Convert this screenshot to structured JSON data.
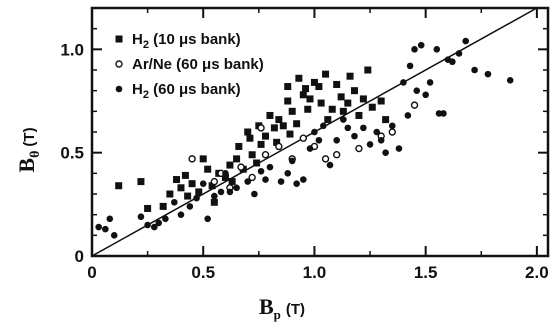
{
  "chart_data": {
    "type": "scatter",
    "title": "",
    "xlabel": {
      "main": "B",
      "sub": "p",
      "unit": "(T)"
    },
    "ylabel": {
      "main": "B",
      "sub": "θ",
      "unit": "(T)"
    },
    "xlim": [
      0,
      2.05
    ],
    "ylim": [
      0,
      1.2
    ],
    "x_ticks": [
      {
        "value": 0,
        "label": "0"
      },
      {
        "value": 0.5,
        "label": "0.5"
      },
      {
        "value": 1.0,
        "label": "1.0"
      },
      {
        "value": 1.5,
        "label": "1.5"
      },
      {
        "value": 2.0,
        "label": "2.0"
      }
    ],
    "y_ticks": [
      {
        "value": 0,
        "label": "0"
      },
      {
        "value": 0.5,
        "label": "0.5"
      },
      {
        "value": 1.0,
        "label": "1.0"
      }
    ],
    "grid": false,
    "legend_position": "top-left",
    "reference_line": {
      "x": [
        0,
        2.0
      ],
      "y": [
        0,
        1.2
      ]
    },
    "series": [
      {
        "name": "H2 (10 μs bank)",
        "legend": {
          "pre": "H",
          "sub": "2",
          "post": " (10 μs bank)"
        },
        "marker": "filled-square",
        "points": [
          [
            0.12,
            0.34
          ],
          [
            0.22,
            0.36
          ],
          [
            0.25,
            0.23
          ],
          [
            0.32,
            0.24
          ],
          [
            0.35,
            0.3
          ],
          [
            0.38,
            0.37
          ],
          [
            0.4,
            0.33
          ],
          [
            0.42,
            0.39
          ],
          [
            0.43,
            0.29
          ],
          [
            0.45,
            0.35
          ],
          [
            0.48,
            0.31
          ],
          [
            0.5,
            0.47
          ],
          [
            0.52,
            0.42
          ],
          [
            0.54,
            0.34
          ],
          [
            0.55,
            0.26
          ],
          [
            0.57,
            0.4
          ],
          [
            0.6,
            0.38
          ],
          [
            0.62,
            0.44
          ],
          [
            0.63,
            0.36
          ],
          [
            0.65,
            0.47
          ],
          [
            0.66,
            0.53
          ],
          [
            0.68,
            0.42
          ],
          [
            0.7,
            0.6
          ],
          [
            0.71,
            0.57
          ],
          [
            0.72,
            0.49
          ],
          [
            0.74,
            0.45
          ],
          [
            0.75,
            0.63
          ],
          [
            0.76,
            0.54
          ],
          [
            0.78,
            0.58
          ],
          [
            0.8,
            0.68
          ],
          [
            0.82,
            0.62
          ],
          [
            0.83,
            0.55
          ],
          [
            0.84,
            0.66
          ],
          [
            0.86,
            0.63
          ],
          [
            0.88,
            0.75
          ],
          [
            0.88,
            0.82
          ],
          [
            0.89,
            0.59
          ],
          [
            0.9,
            0.7
          ],
          [
            0.92,
            0.64
          ],
          [
            0.93,
            0.86
          ],
          [
            0.95,
            0.78
          ],
          [
            0.96,
            0.81
          ],
          [
            0.97,
            0.71
          ],
          [
            0.98,
            0.76
          ],
          [
            1.0,
            0.84
          ],
          [
            1.02,
            0.82
          ],
          [
            1.03,
            0.74
          ],
          [
            1.05,
            0.88
          ],
          [
            1.06,
            0.66
          ],
          [
            1.08,
            0.71
          ],
          [
            1.1,
            0.83
          ],
          [
            1.12,
            0.77
          ],
          [
            1.13,
            0.7
          ],
          [
            1.15,
            0.74
          ],
          [
            1.16,
            0.87
          ],
          [
            1.18,
            0.8
          ],
          [
            1.2,
            0.68
          ],
          [
            1.22,
            0.76
          ],
          [
            1.24,
            0.9
          ],
          [
            1.26,
            0.72
          ],
          [
            1.3,
            0.75
          ],
          [
            1.32,
            0.66
          ]
        ]
      },
      {
        "name": "Ar/Ne (60 μs bank)",
        "legend": {
          "pre": "Ar/Ne (60 μs bank)",
          "sub": "",
          "post": ""
        },
        "marker": "open-circle",
        "points": [
          [
            0.45,
            0.47
          ],
          [
            0.55,
            0.36
          ],
          [
            0.58,
            0.4
          ],
          [
            0.62,
            0.33
          ],
          [
            0.67,
            0.43
          ],
          [
            0.72,
            0.38
          ],
          [
            0.76,
            0.62
          ],
          [
            0.78,
            0.49
          ],
          [
            0.84,
            0.53
          ],
          [
            0.9,
            0.47
          ],
          [
            0.95,
            0.57
          ],
          [
            1.0,
            0.53
          ],
          [
            1.05,
            0.47
          ],
          [
            1.1,
            0.49
          ],
          [
            1.2,
            0.52
          ],
          [
            1.3,
            0.58
          ],
          [
            1.35,
            0.6
          ],
          [
            1.45,
            0.73
          ]
        ]
      },
      {
        "name": "H2 (60 μs bank)",
        "legend": {
          "pre": "H",
          "sub": "2",
          "post": " (60 μs bank)"
        },
        "marker": "filled-circle",
        "points": [
          [
            0.03,
            0.14
          ],
          [
            0.06,
            0.13
          ],
          [
            0.08,
            0.18
          ],
          [
            0.1,
            0.1
          ],
          [
            0.22,
            0.19
          ],
          [
            0.25,
            0.15
          ],
          [
            0.28,
            0.14
          ],
          [
            0.3,
            0.16
          ],
          [
            0.33,
            0.18
          ],
          [
            0.37,
            0.26
          ],
          [
            0.4,
            0.2
          ],
          [
            0.44,
            0.24
          ],
          [
            0.47,
            0.28
          ],
          [
            0.5,
            0.35
          ],
          [
            0.52,
            0.18
          ],
          [
            0.55,
            0.29
          ],
          [
            0.58,
            0.31
          ],
          [
            0.62,
            0.31
          ],
          [
            0.65,
            0.33
          ],
          [
            0.7,
            0.36
          ],
          [
            0.73,
            0.3
          ],
          [
            0.76,
            0.41
          ],
          [
            0.8,
            0.43
          ],
          [
            0.85,
            0.36
          ],
          [
            0.88,
            0.4
          ],
          [
            0.9,
            0.46
          ],
          [
            0.95,
            0.37
          ],
          [
            0.98,
            0.52
          ],
          [
            1.0,
            0.6
          ],
          [
            1.02,
            0.56
          ],
          [
            1.04,
            0.63
          ],
          [
            1.07,
            0.44
          ],
          [
            1.1,
            0.56
          ],
          [
            1.13,
            0.66
          ],
          [
            1.15,
            0.62
          ],
          [
            1.18,
            0.58
          ],
          [
            1.22,
            0.62
          ],
          [
            1.25,
            0.54
          ],
          [
            1.28,
            0.6
          ],
          [
            1.3,
            0.56
          ],
          [
            1.32,
            0.5
          ],
          [
            1.35,
            0.63
          ],
          [
            1.38,
            0.52
          ],
          [
            1.4,
            0.84
          ],
          [
            1.42,
            0.68
          ],
          [
            1.43,
            0.92
          ],
          [
            1.45,
            1.0
          ],
          [
            1.46,
            0.8
          ],
          [
            1.48,
            1.02
          ],
          [
            1.5,
            0.78
          ],
          [
            1.52,
            0.84
          ],
          [
            1.55,
            1.0
          ],
          [
            1.56,
            0.69
          ],
          [
            1.58,
            0.69
          ],
          [
            1.6,
            0.95
          ],
          [
            1.62,
            0.94
          ],
          [
            1.65,
            0.98
          ],
          [
            1.68,
            1.04
          ],
          [
            1.72,
            0.9
          ],
          [
            1.78,
            0.88
          ],
          [
            1.88,
            0.85
          ],
          [
            0.6,
            0.4
          ],
          [
            0.78,
            0.37
          ],
          [
            0.92,
            0.35
          ]
        ]
      }
    ]
  }
}
